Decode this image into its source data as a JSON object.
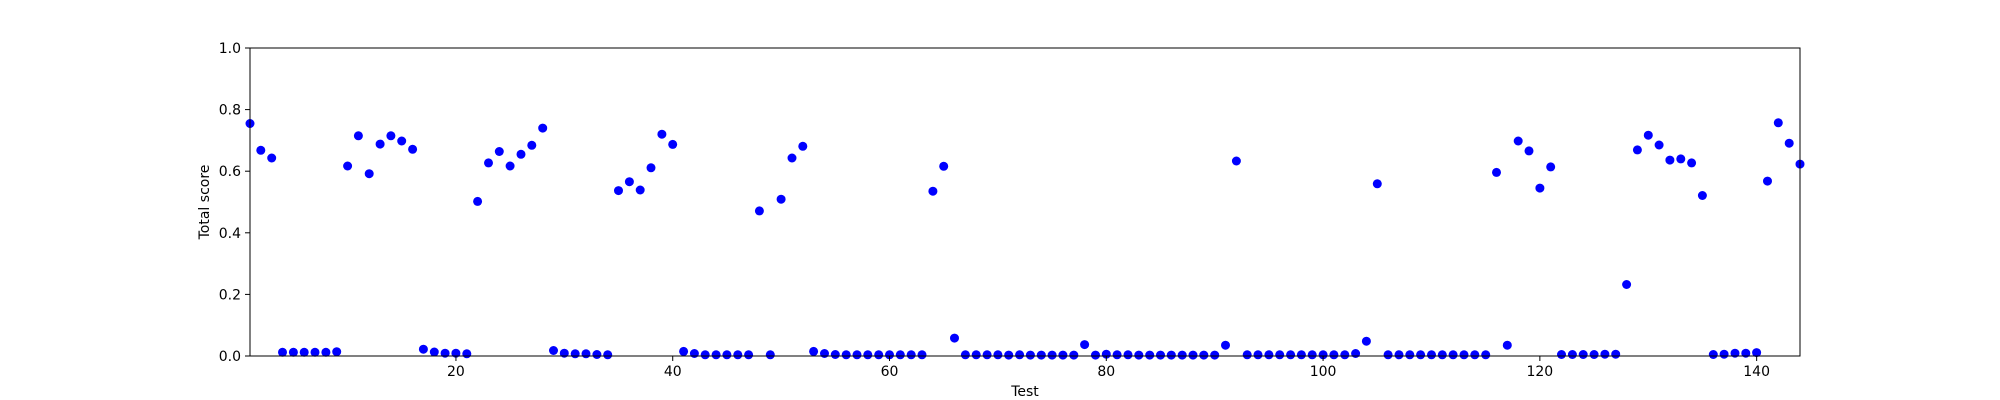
{
  "chart_data": {
    "type": "scatter",
    "title": "",
    "xlabel": "Test",
    "ylabel": "Total score",
    "xlim": [
      1,
      144
    ],
    "ylim": [
      0.0,
      1.0
    ],
    "x_ticks": [
      20,
      40,
      60,
      80,
      100,
      120,
      140
    ],
    "x_tick_labels": [
      "20",
      "40",
      "60",
      "80",
      "100",
      "120",
      "140"
    ],
    "y_ticks": [
      0.0,
      0.2,
      0.4,
      0.6,
      0.8,
      1.0
    ],
    "y_tick_labels": [
      "0.0",
      "0.2",
      "0.4",
      "0.6",
      "0.8",
      "1.0"
    ],
    "grid": false,
    "legend": "none",
    "marker_color": "#0000ff",
    "series": [
      {
        "x": [
          1,
          2,
          3,
          4,
          5,
          6,
          7,
          8,
          9,
          10,
          11,
          12,
          13,
          14,
          15,
          16,
          17,
          18,
          19,
          20,
          21,
          22,
          23,
          24,
          25,
          26,
          27,
          28,
          29,
          30,
          31,
          32,
          33,
          34,
          35,
          36,
          37,
          38,
          39,
          40,
          41,
          42,
          43,
          44,
          45,
          46,
          47,
          48,
          49,
          50,
          51,
          52,
          53,
          54,
          55,
          56,
          57,
          58,
          59,
          60,
          61,
          62,
          63,
          64,
          65,
          66,
          67,
          68,
          69,
          70,
          71,
          72,
          73,
          74,
          75,
          76,
          77,
          78,
          79,
          80,
          81,
          82,
          83,
          84,
          85,
          86,
          87,
          88,
          89,
          90,
          91,
          92,
          93,
          94,
          95,
          96,
          97,
          98,
          99,
          100,
          101,
          102,
          103,
          104,
          105,
          106,
          107,
          108,
          109,
          110,
          111,
          112,
          113,
          114,
          115,
          116,
          117,
          118,
          119,
          120,
          121,
          122,
          123,
          124,
          125,
          126,
          127,
          128,
          129,
          130,
          131,
          132,
          133,
          134,
          135,
          136,
          137,
          138,
          139,
          140,
          141,
          142,
          143,
          144
        ],
        "y": [
          0.755,
          0.668,
          0.643,
          0.012,
          0.012,
          0.012,
          0.012,
          0.012,
          0.014,
          0.617,
          0.715,
          0.592,
          0.688,
          0.715,
          0.698,
          0.671,
          0.022,
          0.013,
          0.009,
          0.009,
          0.007,
          0.502,
          0.627,
          0.664,
          0.617,
          0.655,
          0.684,
          0.74,
          0.018,
          0.009,
          0.007,
          0.007,
          0.005,
          0.004,
          0.537,
          0.566,
          0.539,
          0.611,
          0.72,
          0.687,
          0.015,
          0.008,
          0.004,
          0.004,
          0.004,
          0.004,
          0.004,
          0.471,
          0.004,
          0.509,
          0.643,
          0.681,
          0.015,
          0.008,
          0.005,
          0.004,
          0.004,
          0.004,
          0.004,
          0.004,
          0.004,
          0.004,
          0.004,
          0.535,
          0.616,
          0.058,
          0.004,
          0.004,
          0.004,
          0.004,
          0.003,
          0.004,
          0.003,
          0.003,
          0.003,
          0.003,
          0.003,
          0.037,
          0.003,
          0.006,
          0.004,
          0.004,
          0.003,
          0.003,
          0.003,
          0.003,
          0.003,
          0.003,
          0.003,
          0.003,
          0.035,
          0.633,
          0.004,
          0.004,
          0.004,
          0.004,
          0.004,
          0.004,
          0.004,
          0.004,
          0.004,
          0.004,
          0.008,
          0.048,
          0.559,
          0.004,
          0.004,
          0.004,
          0.004,
          0.004,
          0.004,
          0.004,
          0.004,
          0.004,
          0.004,
          0.596,
          0.035,
          0.698,
          0.666,
          0.545,
          0.614,
          0.005,
          0.005,
          0.005,
          0.005,
          0.006,
          0.006,
          0.232,
          0.669,
          0.717,
          0.685,
          0.636,
          0.64,
          0.627,
          0.521,
          0.005,
          0.006,
          0.009,
          0.009,
          0.011,
          0.568,
          0.757,
          0.691,
          0.623
        ]
      }
    ]
  }
}
